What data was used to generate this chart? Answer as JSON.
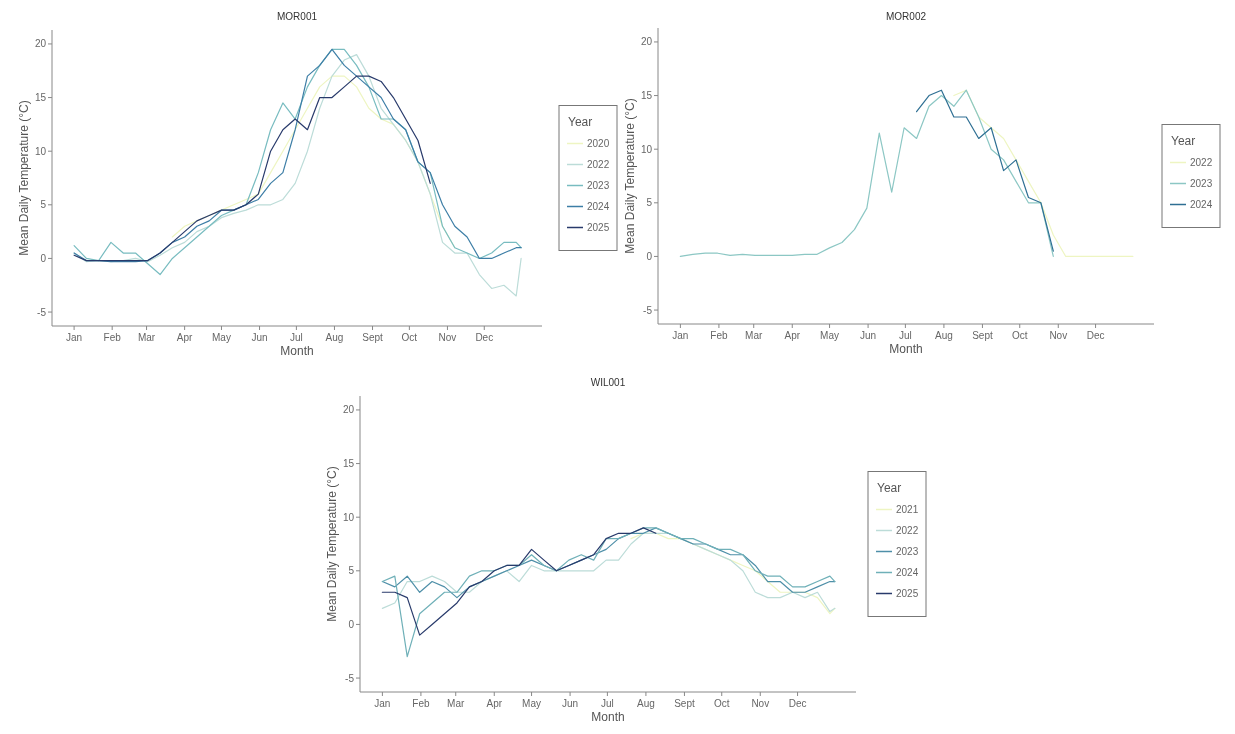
{
  "chart_data": [
    {
      "type": "line",
      "title": "MOR001",
      "xlabel": "Month",
      "ylabel": "Mean Daily Temperature (°C)",
      "legend_title": "Year",
      "legend": "right",
      "x": [
        "--01-01",
        "--01-11",
        "--01-21",
        "--01-31",
        "--02-10",
        "--02-20",
        "--03-02",
        "--03-12",
        "--03-22",
        "--04-01",
        "--04-11",
        "--04-21",
        "--05-01",
        "--05-11",
        "--05-21",
        "--05-31",
        "--06-10",
        "--06-20",
        "--06-30",
        "--07-10",
        "--07-20",
        "--07-30",
        "--08-09",
        "--08-19",
        "--08-29",
        "--09-08",
        "--09-18",
        "--09-28",
        "--10-08",
        "--10-18",
        "--10-28",
        "--11-07",
        "--11-17",
        "--11-27",
        "--12-07",
        "--12-17",
        "--12-27",
        "--12-31"
      ],
      "xlim": [
        "2000-12-14",
        "2002-01-17"
      ],
      "ylim": [
        -6.3,
        21.3
      ],
      "xticks": [
        {
          "value": "--01-01",
          "label": "Jan"
        },
        {
          "value": "--02-01",
          "label": "Feb"
        },
        {
          "value": "--03-01",
          "label": "Mar"
        },
        {
          "value": "--04-01",
          "label": "Apr"
        },
        {
          "value": "--05-01",
          "label": "May"
        },
        {
          "value": "--06-01",
          "label": "Jun"
        },
        {
          "value": "--07-01",
          "label": "Jul"
        },
        {
          "value": "--08-01",
          "label": "Aug"
        },
        {
          "value": "--09-01",
          "label": "Sept"
        },
        {
          "value": "--10-01",
          "label": "Oct"
        },
        {
          "value": "--11-01",
          "label": "Nov"
        },
        {
          "value": "--12-01",
          "label": "Dec"
        }
      ],
      "yticks": [
        -5,
        0,
        5,
        10,
        15,
        20
      ],
      "series": [
        {
          "name": "2020",
          "color": "#eef5c2",
          "values": [
            null,
            null,
            null,
            null,
            null,
            null,
            null,
            null,
            2,
            3,
            3.5,
            4,
            4.5,
            5,
            5.5,
            6,
            8,
            10,
            12,
            14,
            16,
            17,
            17,
            16,
            14,
            13,
            12.5,
            11,
            9,
            6,
            3,
            1,
            null,
            null,
            null,
            null,
            null,
            null
          ]
        },
        {
          "name": "2022",
          "color": "#bcdcd8",
          "values": [
            0.5,
            -0.3,
            -0.2,
            -0.3,
            -0.2,
            0,
            -0.3,
            0.3,
            1,
            1.5,
            2.5,
            3,
            3.8,
            4.2,
            4.5,
            5,
            5,
            5.5,
            7,
            10,
            14,
            17,
            18.5,
            19,
            17,
            14,
            12.5,
            11,
            9,
            6,
            1.5,
            0.5,
            0.5,
            -1.5,
            -2.8,
            -2.5,
            -3.5,
            0
          ]
        },
        {
          "name": "2023",
          "color": "#78bcc0",
          "values": [
            1.2,
            0,
            -0.2,
            1.5,
            0.5,
            0.5,
            -0.5,
            -1.5,
            0,
            1,
            2,
            3,
            4,
            4.5,
            5,
            8,
            12,
            14.5,
            13,
            16,
            18,
            19.5,
            19.5,
            18,
            16,
            13,
            13,
            12,
            9,
            8,
            3,
            1,
            0.5,
            0,
            0.5,
            1.5,
            1.5,
            1
          ]
        },
        {
          "name": "2024",
          "color": "#3d7ea6",
          "values": [
            0.5,
            -0.2,
            -0.2,
            -0.3,
            -0.3,
            -0.3,
            -0.2,
            0.5,
            1.5,
            2,
            3,
            3.5,
            4.5,
            4.5,
            5,
            5.5,
            7,
            8,
            12,
            17,
            18,
            19.5,
            18,
            17,
            16,
            15,
            13,
            12,
            9,
            8,
            5,
            3,
            2,
            0,
            0,
            0.5,
            1,
            1
          ]
        },
        {
          "name": "2025",
          "color": "#283a6b",
          "values": [
            0.3,
            -0.2,
            -0.2,
            -0.2,
            -0.2,
            -0.2,
            -0.2,
            0.5,
            1.5,
            2.5,
            3.5,
            4,
            4.5,
            4.5,
            5,
            6,
            10,
            12,
            13,
            12,
            15,
            15,
            16,
            17,
            17,
            16.5,
            15,
            13,
            11,
            7,
            null,
            null,
            null,
            null,
            null,
            null,
            null,
            null
          ]
        }
      ]
    },
    {
      "type": "line",
      "title": "MOR002",
      "xlabel": "Month",
      "ylabel": "Mean Daily Temperature (°C)",
      "legend_title": "Year",
      "legend": "right",
      "x": [
        "--01-01",
        "--01-11",
        "--01-21",
        "--01-31",
        "--02-10",
        "--02-20",
        "--03-02",
        "--03-12",
        "--03-22",
        "--04-01",
        "--04-11",
        "--04-21",
        "--05-01",
        "--05-11",
        "--05-21",
        "--05-31",
        "--06-10",
        "--06-20",
        "--06-30",
        "--07-10",
        "--07-20",
        "--07-30",
        "--08-09",
        "--08-19",
        "--08-29",
        "--09-08",
        "--09-18",
        "--09-28",
        "--10-08",
        "--10-18",
        "--10-28",
        "--11-07",
        "--11-17",
        "--11-27",
        "--12-07",
        "--12-17",
        "--12-27",
        "--12-31"
      ],
      "xlim": [
        "2000-12-14",
        "2002-01-17"
      ],
      "ylim": [
        -6.3,
        21.3
      ],
      "xticks": [
        {
          "value": "--01-01",
          "label": "Jan"
        },
        {
          "value": "--02-01",
          "label": "Feb"
        },
        {
          "value": "--03-01",
          "label": "Mar"
        },
        {
          "value": "--04-01",
          "label": "Apr"
        },
        {
          "value": "--05-01",
          "label": "May"
        },
        {
          "value": "--06-01",
          "label": "Jun"
        },
        {
          "value": "--07-01",
          "label": "Jul"
        },
        {
          "value": "--08-01",
          "label": "Aug"
        },
        {
          "value": "--09-01",
          "label": "Sept"
        },
        {
          "value": "--10-01",
          "label": "Oct"
        },
        {
          "value": "--11-01",
          "label": "Nov"
        },
        {
          "value": "--12-01",
          "label": "Dec"
        }
      ],
      "yticks": [
        -5,
        0,
        5,
        10,
        15,
        20
      ],
      "series": [
        {
          "name": "2022",
          "color": "#eef5c2",
          "values": [
            null,
            null,
            null,
            null,
            null,
            null,
            null,
            null,
            null,
            null,
            null,
            null,
            null,
            null,
            null,
            null,
            null,
            null,
            null,
            null,
            null,
            null,
            15,
            15.5,
            13,
            12,
            11,
            9,
            7,
            5,
            2,
            0,
            0,
            0,
            0,
            0,
            0,
            0
          ]
        },
        {
          "name": "2023",
          "color": "#8cc7c4",
          "values": [
            0,
            0.2,
            0.3,
            0.3,
            0.1,
            0.2,
            0.1,
            0.1,
            0.1,
            0.1,
            0.2,
            0.2,
            0.8,
            1.3,
            2.5,
            4.5,
            11.5,
            6,
            12,
            11,
            14,
            15,
            14,
            15.5,
            13,
            10,
            9,
            7,
            5,
            5,
            0,
            null,
            null,
            null,
            null,
            null,
            null,
            null
          ]
        },
        {
          "name": "2024",
          "color": "#2e6f93",
          "values": [
            null,
            null,
            null,
            null,
            null,
            null,
            null,
            null,
            null,
            null,
            null,
            null,
            null,
            null,
            null,
            null,
            null,
            null,
            null,
            13.5,
            15,
            15.5,
            13,
            13,
            11,
            12,
            8,
            9,
            5.5,
            5,
            0.5,
            null,
            null,
            null,
            null,
            null,
            null,
            null
          ]
        }
      ]
    },
    {
      "type": "line",
      "title": "WIL001",
      "xlabel": "Month",
      "ylabel": "Mean Daily Temperature (°C)",
      "legend_title": "Year",
      "legend": "right",
      "x": [
        "--01-01",
        "--01-11",
        "--01-21",
        "--01-31",
        "--02-10",
        "--02-20",
        "--03-02",
        "--03-12",
        "--03-22",
        "--04-01",
        "--04-11",
        "--04-21",
        "--05-01",
        "--05-11",
        "--05-21",
        "--05-31",
        "--06-10",
        "--06-20",
        "--06-30",
        "--07-10",
        "--07-20",
        "--07-30",
        "--08-09",
        "--08-19",
        "--08-29",
        "--09-08",
        "--09-18",
        "--09-28",
        "--10-08",
        "--10-18",
        "--10-28",
        "--11-07",
        "--11-17",
        "--11-27",
        "--12-07",
        "--12-17",
        "--12-27",
        "--12-31"
      ],
      "xlim": [
        "2000-12-14",
        "2002-01-17"
      ],
      "ylim": [
        -6.3,
        21.3
      ],
      "xticks": [
        {
          "value": "--01-01",
          "label": "Jan"
        },
        {
          "value": "--02-01",
          "label": "Feb"
        },
        {
          "value": "--03-01",
          "label": "Mar"
        },
        {
          "value": "--04-01",
          "label": "Apr"
        },
        {
          "value": "--05-01",
          "label": "May"
        },
        {
          "value": "--06-01",
          "label": "Jun"
        },
        {
          "value": "--07-01",
          "label": "Jul"
        },
        {
          "value": "--08-01",
          "label": "Aug"
        },
        {
          "value": "--09-01",
          "label": "Sept"
        },
        {
          "value": "--10-01",
          "label": "Oct"
        },
        {
          "value": "--11-01",
          "label": "Nov"
        },
        {
          "value": "--12-01",
          "label": "Dec"
        }
      ],
      "yticks": [
        -5,
        0,
        5,
        10,
        15,
        20
      ],
      "series": [
        {
          "name": "2021",
          "color": "#eef5c2",
          "values": [
            null,
            null,
            null,
            null,
            null,
            null,
            null,
            null,
            null,
            null,
            null,
            null,
            null,
            null,
            null,
            null,
            null,
            null,
            null,
            null,
            8,
            8.5,
            8.5,
            8,
            8,
            7.5,
            7,
            6.5,
            6,
            5.5,
            5,
            4,
            3,
            3,
            3,
            2.5,
            1,
            1.5
          ]
        },
        {
          "name": "2022",
          "color": "#bcdcd8",
          "values": [
            1.5,
            2,
            4,
            4,
            4.5,
            4,
            3,
            3,
            4,
            4.5,
            5,
            4,
            5.5,
            5,
            5,
            5,
            5,
            5,
            6,
            6,
            7.5,
            8.5,
            8.5,
            8.5,
            8,
            7.5,
            7,
            6.5,
            6,
            5,
            3,
            2.5,
            2.5,
            3,
            2.5,
            3,
            1.2,
            1.5
          ]
        },
        {
          "name": "2023",
          "color": "#4e8fa8",
          "values": [
            4,
            3.5,
            4.5,
            3,
            4,
            3.5,
            2.5,
            3.5,
            4,
            4.5,
            5,
            5.5,
            6,
            5.5,
            5,
            5.5,
            6,
            6.5,
            7,
            8,
            8.5,
            8.5,
            9,
            8.5,
            8,
            7.5,
            7.5,
            7,
            6.5,
            6.5,
            5.5,
            4,
            4,
            3,
            3,
            3.5,
            4,
            4
          ]
        },
        {
          "name": "2024",
          "color": "#6fb0b8",
          "values": [
            4,
            4.5,
            -3,
            1,
            2,
            3,
            3,
            4.5,
            5,
            5,
            5.5,
            5.5,
            6.5,
            5.5,
            5,
            6,
            6.5,
            6,
            8,
            8,
            8.5,
            9,
            9,
            8.5,
            8,
            8,
            7.5,
            7,
            7,
            6.5,
            5,
            4.5,
            4.5,
            3.5,
            3.5,
            4,
            4.5,
            4
          ]
        },
        {
          "name": "2025",
          "color": "#283a6b",
          "values": [
            3,
            3,
            2.5,
            -1,
            0,
            1,
            2,
            3.5,
            4,
            5,
            5.5,
            5.5,
            7,
            6,
            5,
            5.5,
            6,
            6.5,
            8,
            8.5,
            8.5,
            9,
            8.5,
            null,
            null,
            null,
            null,
            null,
            null,
            null,
            null,
            null,
            null,
            null,
            null,
            null,
            null,
            null
          ]
        }
      ]
    }
  ]
}
